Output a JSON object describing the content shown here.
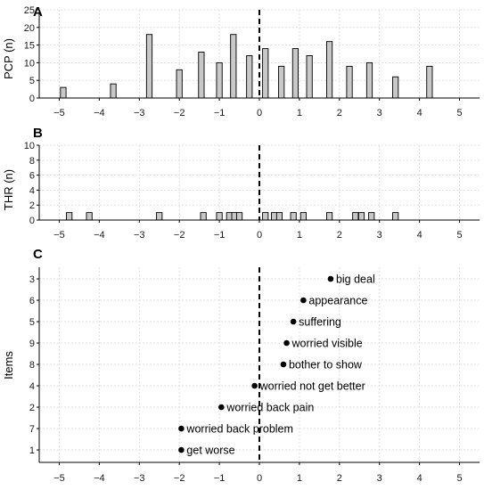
{
  "chart_data": [
    {
      "panel": "A",
      "type": "bar",
      "ylabel": "PCP (n)",
      "xlim": [
        -5.5,
        5.5
      ],
      "ylim": [
        0,
        25
      ],
      "xticks": [
        -5,
        -4,
        -3,
        -2,
        -1,
        0,
        1,
        2,
        3,
        4,
        5
      ],
      "yticks": [
        0,
        5,
        10,
        15,
        20,
        25
      ],
      "grid": true,
      "reference_line_x": 0,
      "bar_width": 0.14,
      "x": [
        -4.9,
        -3.65,
        -2.75,
        -2.0,
        -1.45,
        -1.0,
        -0.65,
        -0.25,
        0.15,
        0.55,
        0.9,
        1.25,
        1.75,
        2.25,
        2.75,
        3.4,
        4.25
      ],
      "values": [
        3,
        4,
        18,
        8,
        13,
        10,
        18,
        12,
        14,
        9,
        14,
        12,
        16,
        9,
        10,
        6,
        9
      ]
    },
    {
      "panel": "B",
      "type": "bar",
      "ylabel": "THR (n)",
      "xlim": [
        -5.5,
        5.5
      ],
      "ylim": [
        0,
        10
      ],
      "xticks": [
        -5,
        -4,
        -3,
        -2,
        -1,
        0,
        1,
        2,
        3,
        4,
        5
      ],
      "yticks": [
        0,
        2,
        4,
        6,
        8,
        10
      ],
      "grid": true,
      "reference_line_x": 0,
      "bar_width": 0.14,
      "x": [
        -4.75,
        -4.25,
        -2.5,
        -1.4,
        -1.0,
        -0.75,
        -0.62,
        -0.5,
        0.15,
        0.37,
        0.5,
        0.85,
        1.1,
        1.75,
        2.4,
        2.55,
        2.8,
        3.4
      ],
      "values": [
        1,
        1,
        1,
        1,
        1,
        1,
        1,
        1,
        1,
        1,
        1,
        1,
        1,
        1,
        1,
        1,
        1,
        1
      ]
    },
    {
      "panel": "C",
      "type": "scatter",
      "ylabel": "Items",
      "xlim": [
        -5.5,
        5.5
      ],
      "xticks": [
        -5,
        -4,
        -3,
        -2,
        -1,
        0,
        1,
        2,
        3,
        4,
        5
      ],
      "grid": true,
      "reference_line_x": 0,
      "points": [
        {
          "item": "3",
          "x": 1.78,
          "label": "big deal"
        },
        {
          "item": "6",
          "x": 1.1,
          "label": "appearance"
        },
        {
          "item": "5",
          "x": 0.85,
          "label": "suffering"
        },
        {
          "item": "9",
          "x": 0.68,
          "label": "worried visible"
        },
        {
          "item": "8",
          "x": 0.6,
          "label": "bother to show"
        },
        {
          "item": "4",
          "x": -0.12,
          "label": "worried not get better"
        },
        {
          "item": "2",
          "x": -0.95,
          "label": "worried back pain"
        },
        {
          "item": "7",
          "x": -1.95,
          "label": "worried back problem"
        },
        {
          "item": "1",
          "x": -1.95,
          "label": "get worse"
        }
      ]
    }
  ]
}
